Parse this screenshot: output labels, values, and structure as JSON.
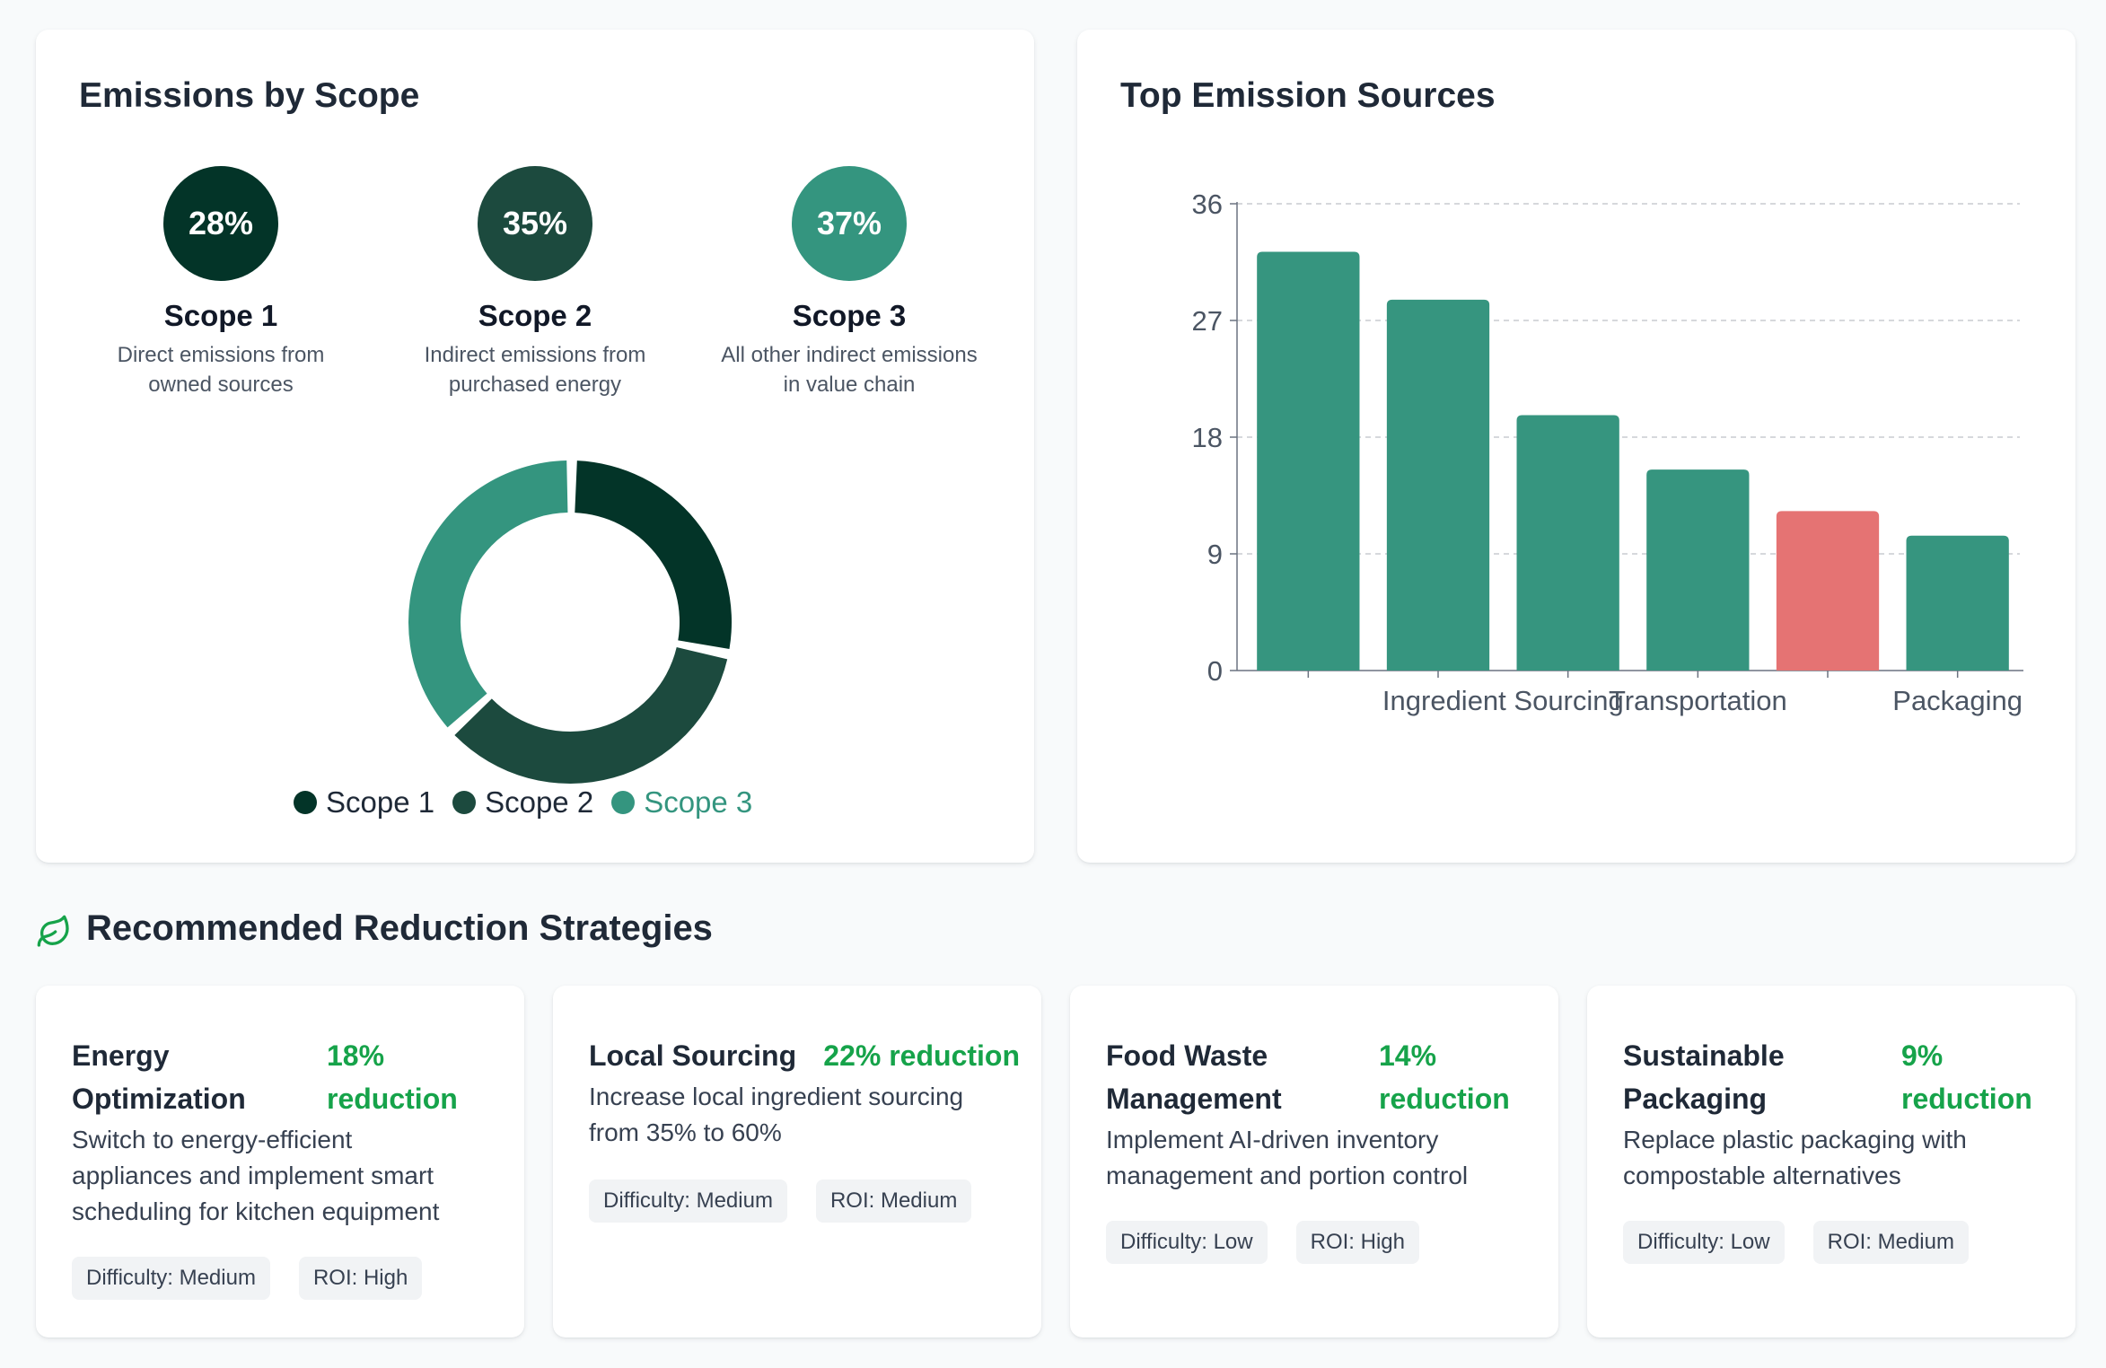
{
  "colors": {
    "scope1": "#033428",
    "scope2": "#1c4a3e",
    "scope3": "#34957f",
    "bar": "#36957f",
    "bar_highlight": "#e57373",
    "reduction": "#16a34a"
  },
  "scope_panel": {
    "title": "Emissions by Scope",
    "scopes": [
      {
        "percent": "28%",
        "name": "Scope 1",
        "desc_line1": "Direct emissions from",
        "desc_line2": "owned sources"
      },
      {
        "percent": "35%",
        "name": "Scope 2",
        "desc_line1": "Indirect emissions from",
        "desc_line2": "purchased energy"
      },
      {
        "percent": "37%",
        "name": "Scope 3",
        "desc_line1": "All other indirect emissions",
        "desc_line2": "in value chain"
      }
    ],
    "legend": [
      "Scope 1",
      "Scope 2",
      "Scope 3"
    ]
  },
  "sources_panel": {
    "title": "Top Emission Sources"
  },
  "chart_data": [
    {
      "type": "pie",
      "title": "Emissions by Scope",
      "categories": [
        "Scope 1",
        "Scope 2",
        "Scope 3"
      ],
      "values": [
        28,
        35,
        37
      ],
      "legend": "bottom"
    },
    {
      "type": "bar",
      "title": "Top Emission Sources",
      "categories": [
        "",
        "Ingredient Sourcing",
        "",
        "Transportation",
        "",
        "Packaging"
      ],
      "values": [
        32.3,
        28.6,
        19.7,
        15.5,
        12.3,
        10.4
      ],
      "highlight_index": 4,
      "yticks": [
        "0",
        "9",
        "18",
        "27",
        "36"
      ],
      "ylim": [
        0,
        36
      ],
      "grid": true
    }
  ],
  "strategies": {
    "title": "Recommended Reduction Strategies",
    "items": [
      {
        "name_line1": "Energy",
        "name_line2": "Optimization",
        "reduction_line1": "18%",
        "reduction_line2": "reduction",
        "desc_line1": "Switch to energy-efficient",
        "desc_line2": "appliances and implement smart",
        "desc_line3": "scheduling for kitchen equipment",
        "difficulty": "Difficulty: Medium",
        "roi": "ROI: High"
      },
      {
        "name_line1": "Local Sourcing",
        "name_line2": "",
        "reduction_line1": "22% reduction",
        "reduction_line2": "",
        "desc_line1": "Increase local ingredient sourcing",
        "desc_line2": "from 35% to 60%",
        "desc_line3": "",
        "difficulty": "Difficulty: Medium",
        "roi": "ROI: Medium"
      },
      {
        "name_line1": "Food Waste",
        "name_line2": "Management",
        "reduction_line1": "14%",
        "reduction_line2": "reduction",
        "desc_line1": "Implement AI-driven inventory",
        "desc_line2": "management and portion control",
        "desc_line3": "",
        "difficulty": "Difficulty: Low",
        "roi": "ROI: High"
      },
      {
        "name_line1": "Sustainable",
        "name_line2": "Packaging",
        "reduction_line1": "9%",
        "reduction_line2": "reduction",
        "desc_line1": "Replace plastic packaging with",
        "desc_line2": "compostable alternatives",
        "desc_line3": "",
        "difficulty": "Difficulty: Low",
        "roi": "ROI: Medium"
      }
    ]
  }
}
